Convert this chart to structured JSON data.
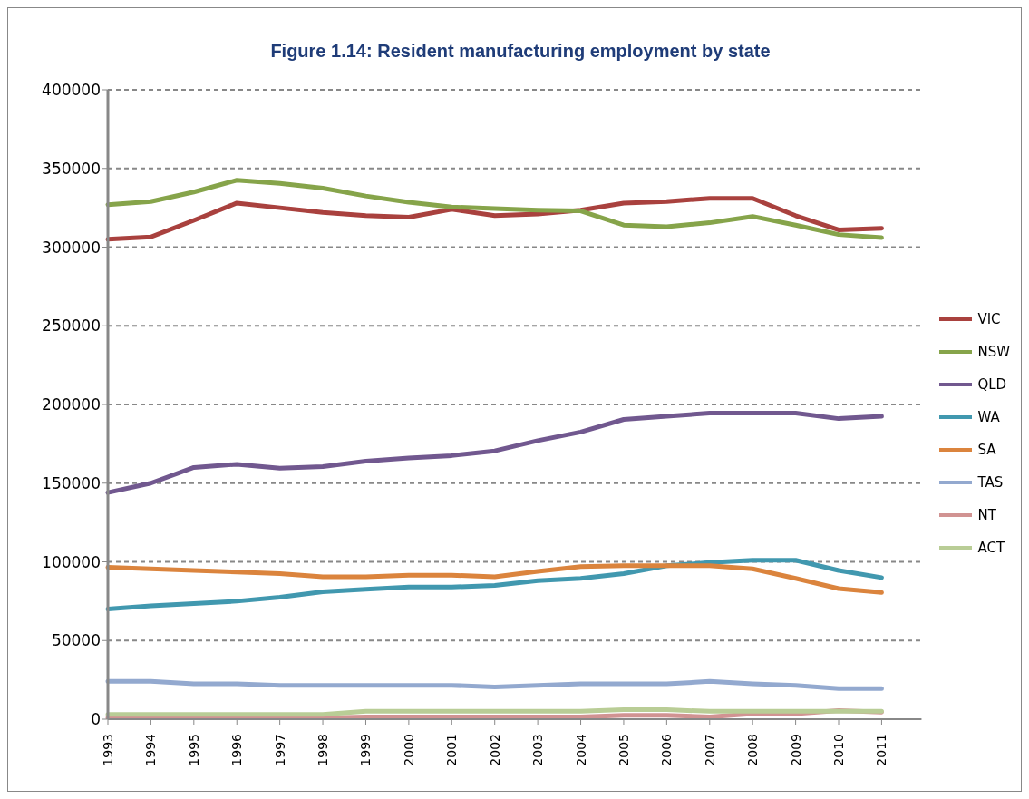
{
  "chart_data": {
    "type": "line",
    "title": "Figure 1.14: Resident manufacturing employment by state",
    "categories": [
      "1993",
      "1994",
      "1995",
      "1996",
      "1997",
      "1998",
      "1999",
      "2000",
      "2001",
      "2002",
      "2003",
      "2004",
      "2005",
      "2006",
      "2007",
      "2008",
      "2009",
      "2010",
      "2011"
    ],
    "series": [
      {
        "name": "VIC",
        "color": "#a9413e",
        "values": [
          305000,
          306500,
          317000,
          328000,
          325000,
          322000,
          320000,
          319000,
          324000,
          320000,
          321000,
          323500,
          328000,
          329000,
          331000,
          331000,
          320000,
          311000,
          312000
        ]
      },
      {
        "name": "NSW",
        "color": "#86a44a",
        "values": [
          327000,
          329000,
          335000,
          342500,
          340500,
          337500,
          332500,
          328500,
          325500,
          324500,
          323500,
          323000,
          314000,
          313000,
          315500,
          319500,
          314000,
          308000,
          306000
        ]
      },
      {
        "name": "QLD",
        "color": "#71588f",
        "values": [
          144000,
          150000,
          160000,
          162000,
          159500,
          160500,
          164000,
          166000,
          167500,
          170500,
          177000,
          182500,
          190500,
          192500,
          194500,
          194500,
          194500,
          191000,
          192500
        ]
      },
      {
        "name": "WA",
        "color": "#4198af",
        "values": [
          70000,
          72000,
          73500,
          75000,
          77500,
          81000,
          82500,
          84000,
          84000,
          85000,
          88000,
          89500,
          92500,
          97500,
          99500,
          101000,
          101000,
          94500,
          90000
        ]
      },
      {
        "name": "SA",
        "color": "#db843d",
        "values": [
          96500,
          95500,
          94500,
          93500,
          92500,
          90500,
          90500,
          91500,
          91500,
          90500,
          94000,
          97000,
          97500,
          97500,
          97500,
          95500,
          89500,
          83000,
          80500
        ]
      },
      {
        "name": "TAS",
        "color": "#93a9cf",
        "values": [
          24000,
          24000,
          22500,
          22500,
          21500,
          21500,
          21500,
          21500,
          21500,
          20500,
          21500,
          22500,
          22500,
          22500,
          24000,
          22500,
          21500,
          19500,
          19500
        ]
      },
      {
        "name": "NT",
        "color": "#d19392",
        "values": [
          800,
          800,
          800,
          800,
          800,
          800,
          1500,
          1500,
          1500,
          1500,
          1500,
          1500,
          2500,
          2500,
          1500,
          3500,
          3500,
          5500,
          4500
        ]
      },
      {
        "name": "ACT",
        "color": "#b9cd96",
        "values": [
          3000,
          3000,
          3000,
          3000,
          3000,
          3000,
          5000,
          5000,
          5000,
          5000,
          5000,
          5000,
          6000,
          6000,
          5000,
          5000,
          5000,
          5000,
          5000
        ]
      }
    ],
    "ylim": [
      0,
      400000
    ],
    "yticks": [
      0,
      50000,
      100000,
      150000,
      200000,
      250000,
      300000,
      350000,
      400000
    ],
    "grid": "y",
    "legend": "right"
  }
}
